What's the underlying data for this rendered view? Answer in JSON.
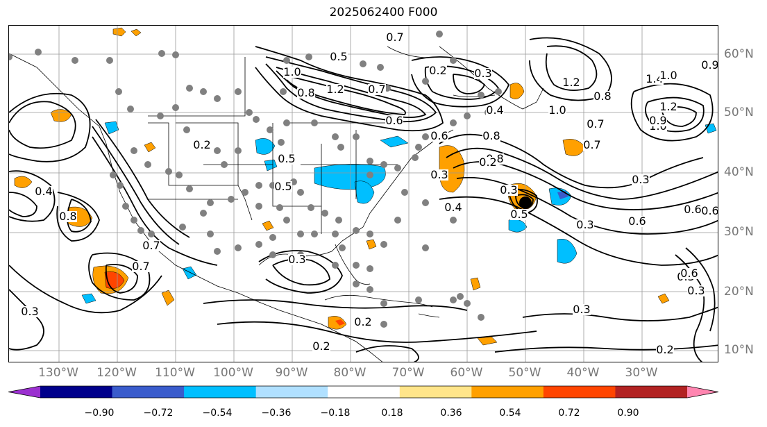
{
  "title": "2025062400 F000",
  "longitude_labels": [
    "130°W",
    "120°W",
    "110°W",
    "100°W",
    "90°W",
    "80°W",
    "70°W",
    "60°W",
    "50°W",
    "40°W",
    "30°W"
  ],
  "latitude_labels": [
    "60°N",
    "50°N",
    "40°N",
    "30°N",
    "20°N",
    "10°N"
  ],
  "colorbar": {
    "tick_labels": [
      "−0.90",
      "−0.72",
      "−0.54",
      "−0.36",
      "−0.18",
      "0.18",
      "0.36",
      "0.54",
      "0.72",
      "0.90"
    ],
    "colors": [
      "#9b30d0",
      "#00008b",
      "#3a5ccc",
      "#00bfff",
      "#b0e0ff",
      "#ffffff",
      "#ffe58a",
      "#ffa000",
      "#ff4500",
      "#b22222",
      "#ff85b0"
    ]
  },
  "contour_labels": [
    "0.5",
    "0.7",
    "0.7",
    "0.6",
    "1.0",
    "0.8",
    "1.2",
    "0.2",
    "0.3",
    "0.4",
    "0.6",
    "0.8",
    "1.0",
    "1.2",
    "1.4",
    "1.2",
    "1.0",
    "0.8",
    "0.5",
    "0.7",
    "0.2",
    "0.5",
    "0.8",
    "0.9",
    "0.3",
    "0.4",
    "0.8",
    "0.6",
    "0.7",
    "0.3",
    "0.5",
    "0.3",
    "0.3",
    "0.6",
    "0.6",
    "0.7",
    "0.3",
    "0.2",
    "0.3",
    "0.2",
    "0.4",
    "0.3",
    "0.9",
    "0.6",
    "1.0",
    "0.7",
    "0.2",
    "0.3",
    "0.3",
    "0.2"
  ],
  "icons": {
    "station_marker": "dot-icon",
    "storm_marker": "black-dot-icon"
  }
}
